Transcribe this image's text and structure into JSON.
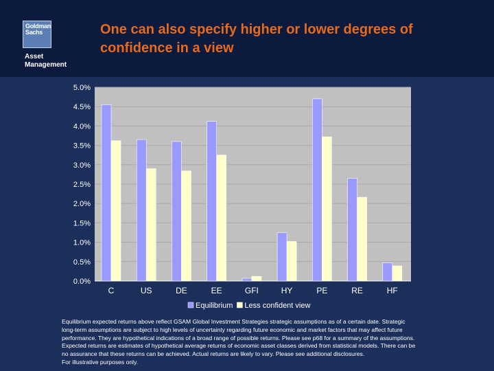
{
  "header": {
    "logo_line1": "Goldman",
    "logo_line2": "Sachs",
    "logo_sub1": "Asset",
    "logo_sub2": "Management",
    "title_line1": "One can also specify higher or lower degrees of",
    "title_line2": "confidence in a view"
  },
  "colors": {
    "header_bg": "#0b1a3d",
    "slide_bg": "#1c2f5a",
    "title": "#e86a1a",
    "plot_bg": "#c0c0c0",
    "equilibrium": "#9999ff",
    "less_confident": "#ffffcc"
  },
  "chart_data": {
    "type": "bar",
    "categories": [
      "C",
      "US",
      "DE",
      "EE",
      "GFI",
      "HY",
      "PE",
      "RE",
      "HF"
    ],
    "series": [
      {
        "name": "Equilibrium",
        "values": [
          4.55,
          3.65,
          3.6,
          4.12,
          0.07,
          1.25,
          4.7,
          2.65,
          0.47
        ]
      },
      {
        "name": "Less confident view",
        "values": [
          3.62,
          2.9,
          2.84,
          3.25,
          0.12,
          1.02,
          3.72,
          2.16,
          0.39
        ]
      }
    ],
    "y_ticks": [
      "0.0%",
      "0.5%",
      "1.0%",
      "1.5%",
      "2.0%",
      "2.5%",
      "3.0%",
      "3.5%",
      "4.0%",
      "4.5%",
      "5.0%"
    ],
    "ylim": [
      0,
      5
    ],
    "grid": true,
    "legend_position": "bottom"
  },
  "footnote": {
    "line1": "Equilibrium expected returns above reflect GSAM Global Investment Strategies strategic assumptions as of a certain date.  Strategic",
    "line2": "long-term assumptions are subject to high levels of uncertainty regarding future economic and market factors that may affect future",
    "line3": "performance. They are hypothetical indications of a broad range of possible returns. Please see p68 for a summary of the assumptions.",
    "line4": "Expected returns are estimates of hypothetical average returns of economic asset classes derived from statistical models. There can be",
    "line5": "no assurance that these returns can be achieved.  Actual returns are likely to vary.  Please see additional disclosures.",
    "line6": "For illustrative purposes only."
  }
}
